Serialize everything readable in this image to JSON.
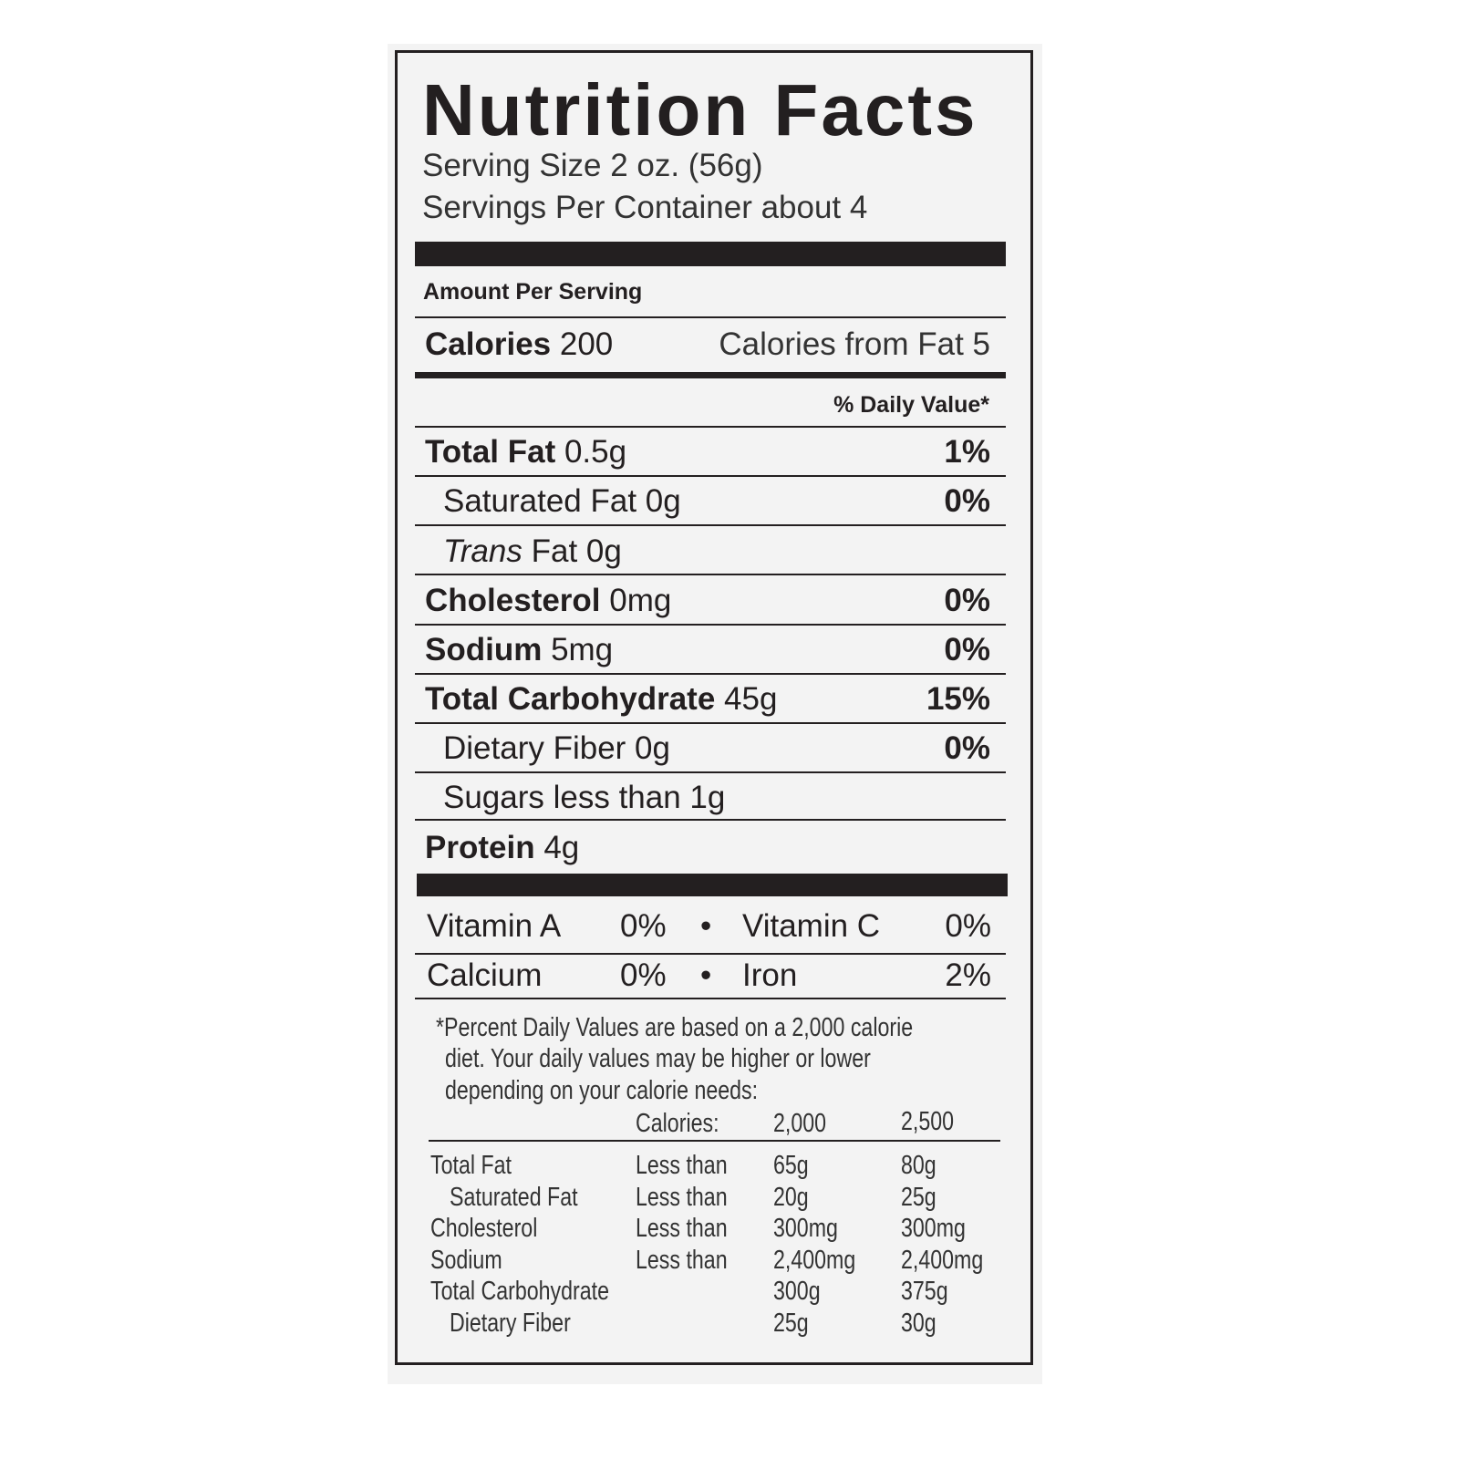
{
  "label": {
    "title": "Nutrition Facts",
    "serving_size": "Serving Size 2 oz. (56g)",
    "servings_per_container": "Servings Per Container about 4",
    "amount_per_serving": "Amount Per Serving",
    "calories": {
      "label": "Calories",
      "value": "200"
    },
    "calories_from_fat": "Calories from Fat 5",
    "daily_value_header": "% Daily Value*",
    "nutrients": [
      {
        "label": "Total Fat",
        "amount": "0.5g",
        "dv": "1%"
      },
      {
        "label": "Saturated Fat 0g",
        "dv": "0%"
      },
      {
        "label_italic": "Trans",
        "label": "Fat 0g"
      },
      {
        "label": "Cholesterol",
        "amount": "0mg",
        "dv": "0%"
      },
      {
        "label": "Sodium",
        "amount": "5mg",
        "dv": "0%"
      },
      {
        "label": "Total Carbohydrate",
        "amount": "45g",
        "dv": "15%"
      },
      {
        "label": "Dietary Fiber 0g",
        "dv": "0%"
      },
      {
        "label": "Sugars less than 1g"
      },
      {
        "label": "Protein",
        "amount": "4g"
      }
    ],
    "vitamins": [
      {
        "name": "Vitamin A",
        "dv": "0%"
      },
      {
        "name": "Vitamin C",
        "dv": "0%"
      },
      {
        "name": "Calcium",
        "dv": "0%"
      },
      {
        "name": "Iron",
        "dv": "2%"
      }
    ],
    "bullet": "•",
    "footnote": [
      "*Percent Daily Values are based on a 2,000 calorie",
      "diet. Your daily values may be higher or lower",
      "depending on your calorie needs:"
    ],
    "dv_table": {
      "header": [
        "",
        "Calories:",
        "2,000",
        "2,500"
      ],
      "rows": [
        [
          "Total Fat",
          "Less than",
          "65g",
          "80g"
        ],
        [
          "Saturated Fat",
          "Less than",
          "20g",
          "25g"
        ],
        [
          "Cholesterol",
          "Less than",
          "300mg",
          "300mg"
        ],
        [
          "Sodium",
          "Less than",
          "2,400mg",
          "2,400mg"
        ],
        [
          "Total Carbohydrate",
          "",
          "300g",
          "375g"
        ],
        [
          "Dietary Fiber",
          "",
          "25g",
          "30g"
        ]
      ]
    }
  }
}
